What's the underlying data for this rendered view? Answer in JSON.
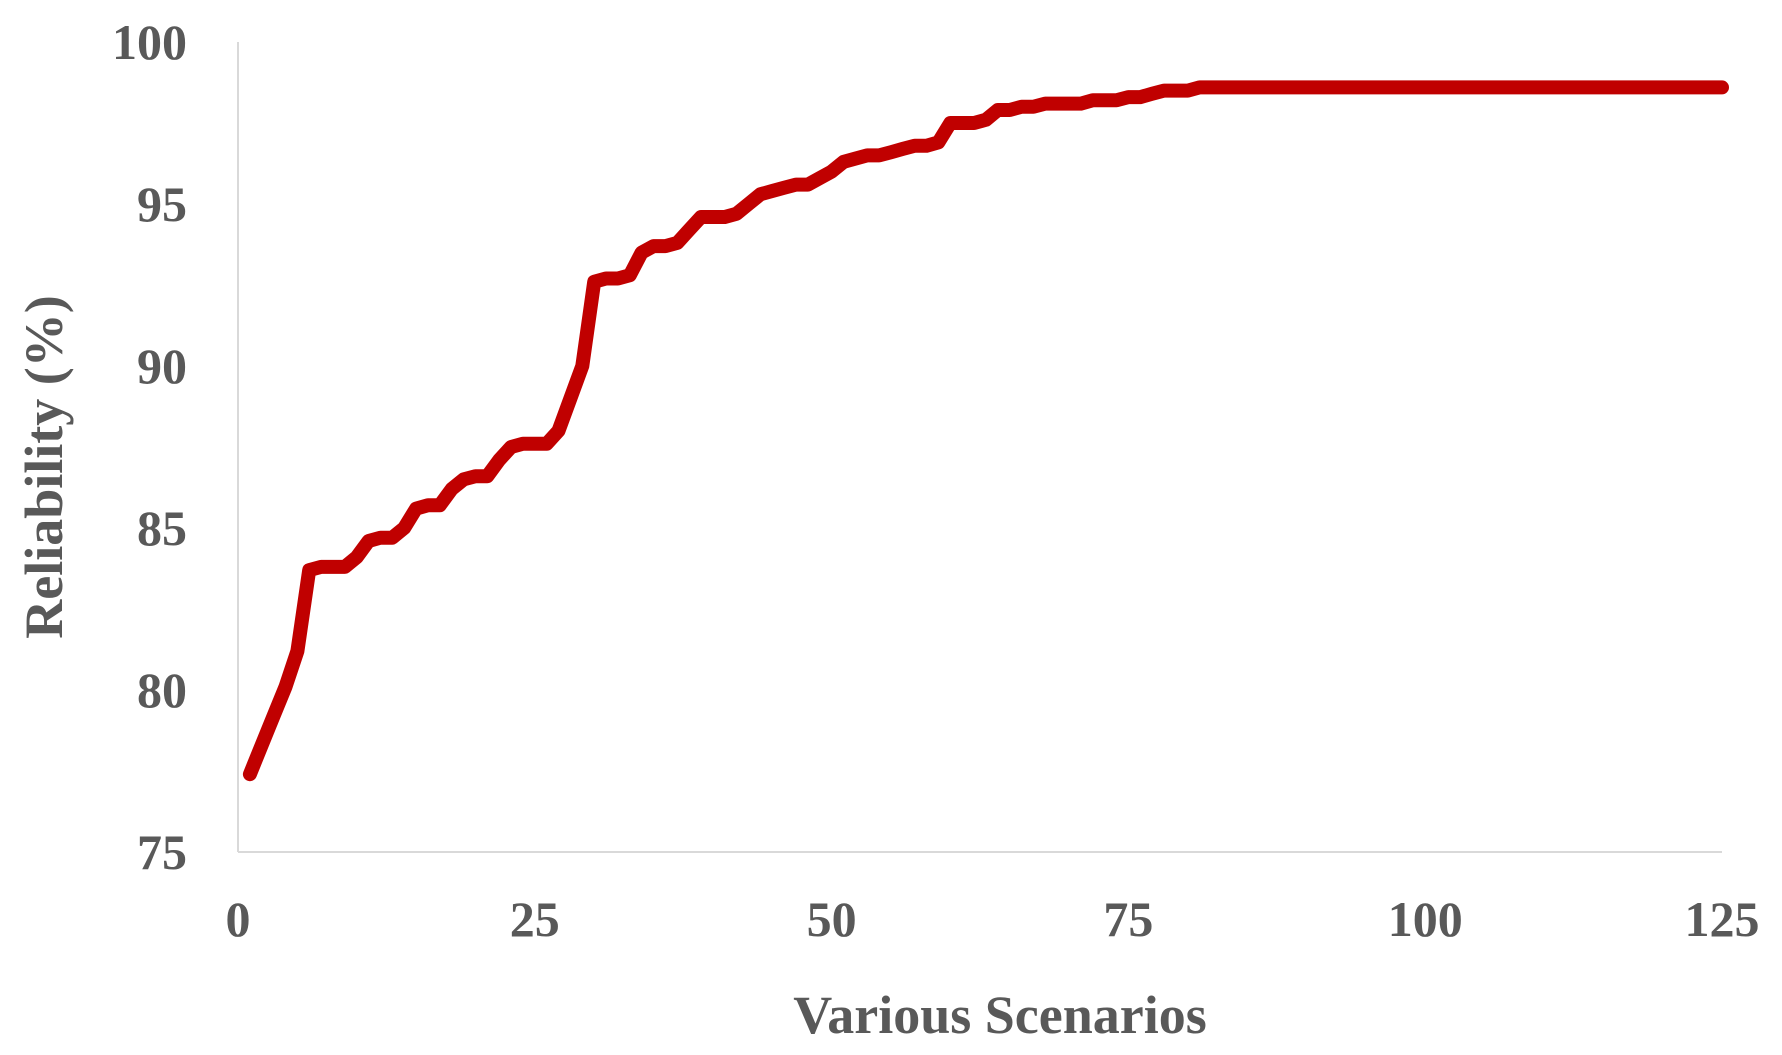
{
  "chart_data": {
    "type": "line",
    "title": "",
    "xlabel": "Various Scenarios",
    "ylabel": "Reliability (%)",
    "xlim": [
      0,
      125
    ],
    "ylim": [
      75,
      100
    ],
    "x_ticks": [
      "0",
      "25",
      "50",
      "75",
      "100",
      "125"
    ],
    "y_ticks": [
      "75",
      "80",
      "85",
      "90",
      "95",
      "100"
    ],
    "grid": false,
    "legend": "none",
    "series": [
      {
        "color": "#c00000",
        "points": [
          [
            1,
            77.4
          ],
          [
            2,
            78.3
          ],
          [
            3,
            79.2
          ],
          [
            4,
            80.1
          ],
          [
            5,
            81.2
          ],
          [
            6,
            83.7
          ],
          [
            7,
            83.8
          ],
          [
            8,
            83.8
          ],
          [
            9,
            83.8
          ],
          [
            10,
            84.1
          ],
          [
            11,
            84.6
          ],
          [
            12,
            84.7
          ],
          [
            13,
            84.7
          ],
          [
            14,
            85.0
          ],
          [
            15,
            85.6
          ],
          [
            16,
            85.7
          ],
          [
            17,
            85.7
          ],
          [
            18,
            86.2
          ],
          [
            19,
            86.5
          ],
          [
            20,
            86.6
          ],
          [
            21,
            86.6
          ],
          [
            22,
            87.1
          ],
          [
            23,
            87.5
          ],
          [
            24,
            87.6
          ],
          [
            25,
            87.6
          ],
          [
            26,
            87.6
          ],
          [
            27,
            88.0
          ],
          [
            28,
            89.0
          ],
          [
            29,
            90.0
          ],
          [
            30,
            92.6
          ],
          [
            31,
            92.7
          ],
          [
            32,
            92.7
          ],
          [
            33,
            92.8
          ],
          [
            34,
            93.5
          ],
          [
            35,
            93.7
          ],
          [
            36,
            93.7
          ],
          [
            37,
            93.8
          ],
          [
            38,
            94.2
          ],
          [
            39,
            94.6
          ],
          [
            40,
            94.6
          ],
          [
            41,
            94.6
          ],
          [
            42,
            94.7
          ],
          [
            43,
            95.0
          ],
          [
            44,
            95.3
          ],
          [
            45,
            95.4
          ],
          [
            46,
            95.5
          ],
          [
            47,
            95.6
          ],
          [
            48,
            95.6
          ],
          [
            49,
            95.8
          ],
          [
            50,
            96.0
          ],
          [
            51,
            96.3
          ],
          [
            52,
            96.4
          ],
          [
            53,
            96.5
          ],
          [
            54,
            96.5
          ],
          [
            55,
            96.6
          ],
          [
            56,
            96.7
          ],
          [
            57,
            96.8
          ],
          [
            58,
            96.8
          ],
          [
            59,
            96.9
          ],
          [
            60,
            97.5
          ],
          [
            61,
            97.5
          ],
          [
            62,
            97.5
          ],
          [
            63,
            97.6
          ],
          [
            64,
            97.9
          ],
          [
            65,
            97.9
          ],
          [
            66,
            98.0
          ],
          [
            67,
            98.0
          ],
          [
            68,
            98.1
          ],
          [
            69,
            98.1
          ],
          [
            70,
            98.1
          ],
          [
            71,
            98.1
          ],
          [
            72,
            98.2
          ],
          [
            73,
            98.2
          ],
          [
            74,
            98.2
          ],
          [
            75,
            98.3
          ],
          [
            76,
            98.3
          ],
          [
            77,
            98.4
          ],
          [
            78,
            98.5
          ],
          [
            79,
            98.5
          ],
          [
            80,
            98.5
          ],
          [
            81,
            98.6
          ],
          [
            82,
            98.6
          ],
          [
            83,
            98.6
          ],
          [
            84,
            98.6
          ],
          [
            85,
            98.6
          ],
          [
            86,
            98.6
          ],
          [
            87,
            98.6
          ],
          [
            88,
            98.6
          ],
          [
            89,
            98.6
          ],
          [
            90,
            98.6
          ],
          [
            95,
            98.6
          ],
          [
            100,
            98.6
          ],
          [
            105,
            98.6
          ],
          [
            110,
            98.6
          ],
          [
            115,
            98.6
          ],
          [
            120,
            98.6
          ],
          [
            125,
            98.6
          ]
        ]
      }
    ]
  }
}
